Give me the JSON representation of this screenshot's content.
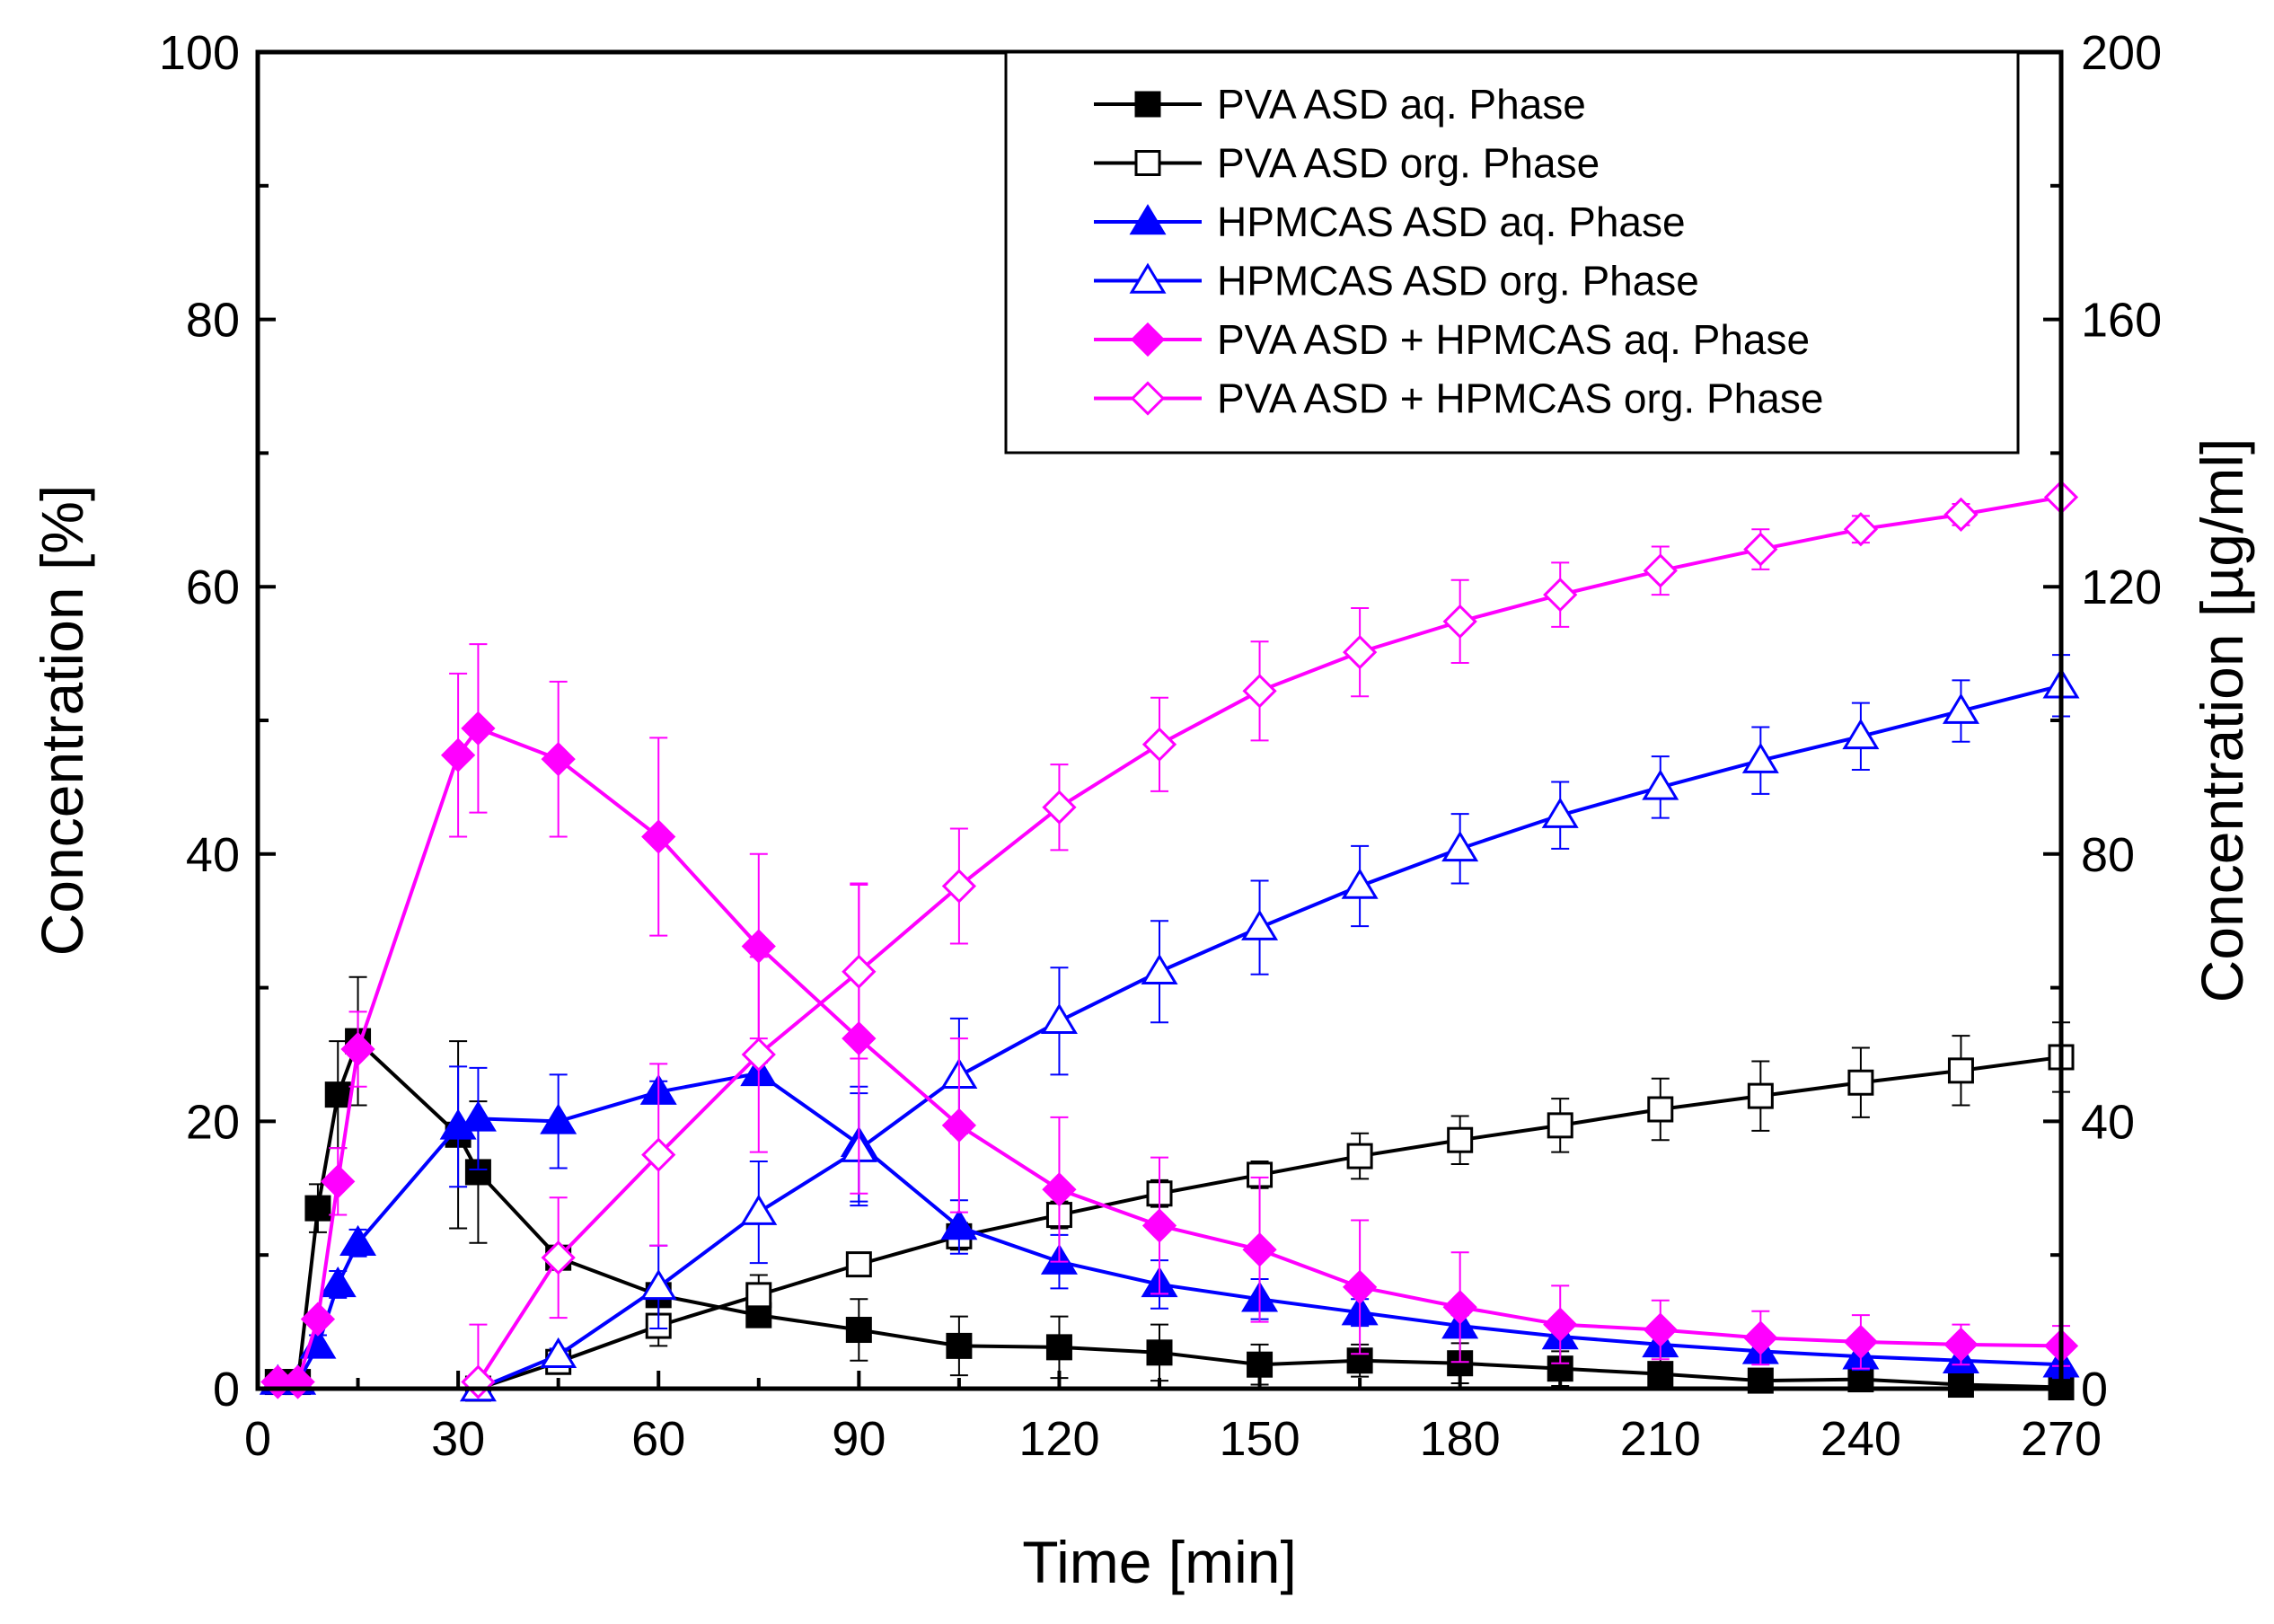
{
  "chart_data": {
    "type": "line",
    "title": "",
    "xlabel": "Time [min]",
    "ylabel": "Concentration [%]",
    "y2label": "Concentration [µg/ml]",
    "xlim": [
      0,
      270
    ],
    "ylim": [
      0,
      100
    ],
    "y2lim": [
      0,
      200
    ],
    "xticks": [
      0,
      30,
      60,
      90,
      120,
      150,
      180,
      210,
      240,
      270
    ],
    "yticks": [
      0,
      20,
      40,
      60,
      80,
      100
    ],
    "y2ticks": [
      0,
      40,
      80,
      120,
      160,
      200
    ],
    "legend_position": "top-right",
    "grid": false,
    "series": [
      {
        "name": "PVA ASD aq. Phase",
        "color": "#000000",
        "marker": "square",
        "filled": true,
        "x": [
          3,
          6,
          9,
          12,
          15,
          30,
          33,
          45,
          60,
          75,
          90,
          105,
          120,
          135,
          150,
          165,
          180,
          195,
          210,
          225,
          240,
          255,
          270
        ],
        "y": [
          0.5,
          0.5,
          13.5,
          22,
          26,
          19,
          16.2,
          9.8,
          7,
          5.5,
          4.4,
          3.2,
          3.1,
          2.7,
          1.8,
          2.1,
          1.9,
          1.5,
          1.1,
          0.6,
          0.7,
          0.3,
          0.1
        ],
        "err": [
          0.3,
          0.3,
          1.8,
          4,
          4.8,
          7,
          5.3,
          0.8,
          0.8,
          0.8,
          2.3,
          2.2,
          2.3,
          2.1,
          1.5,
          1.2,
          1.5,
          1.3,
          1.3,
          0.7,
          1.1,
          0.6,
          0.4
        ]
      },
      {
        "name": "PVA ASD org. Phase",
        "color": "#000000",
        "marker": "square",
        "filled": false,
        "x": [
          33,
          45,
          60,
          75,
          90,
          105,
          120,
          135,
          150,
          165,
          180,
          195,
          210,
          225,
          240,
          255,
          270
        ],
        "y": [
          0,
          2,
          4.7,
          7,
          9.3,
          11.4,
          13,
          14.6,
          16,
          17.4,
          18.6,
          19.7,
          20.9,
          21.9,
          22.9,
          23.8,
          24.8
        ],
        "err": [
          0,
          0.5,
          1.5,
          1.5,
          0.5,
          1,
          1,
          1,
          1,
          1.7,
          1.8,
          2,
          2.3,
          2.6,
          2.6,
          2.6,
          2.6
        ]
      },
      {
        "name": "HPMCAS ASD aq. Phase",
        "color": "#0000ff",
        "marker": "triangle",
        "filled": true,
        "x": [
          3,
          6,
          9,
          12,
          15,
          30,
          33,
          45,
          60,
          75,
          90,
          105,
          120,
          135,
          150,
          165,
          180,
          195,
          210,
          225,
          240,
          255,
          270
        ],
        "y": [
          0.5,
          0.5,
          3.2,
          7.8,
          10.9,
          19.6,
          20.2,
          20,
          22.2,
          23.6,
          18.3,
          12.1,
          9.5,
          7.8,
          6.7,
          5.7,
          4.7,
          3.9,
          3.3,
          2.8,
          2.4,
          2.1,
          1.8
        ],
        "err": [
          0.3,
          0.3,
          0.8,
          1,
          1,
          4.5,
          3.8,
          3.5,
          0.8,
          0.8,
          4.3,
          2,
          2,
          1.8,
          1.5,
          1,
          0.8,
          0.8,
          0.8,
          0.8,
          1,
          0.8,
          1
        ]
      },
      {
        "name": "HPMCAS ASD org. Phase",
        "color": "#0000ff",
        "marker": "triangle",
        "filled": false,
        "x": [
          33,
          45,
          60,
          75,
          90,
          105,
          120,
          135,
          150,
          165,
          180,
          195,
          210,
          225,
          240,
          255,
          270
        ],
        "y": [
          0,
          2.5,
          7.6,
          13.2,
          17.9,
          23.4,
          27.5,
          31.2,
          34.5,
          37.6,
          40.4,
          42.9,
          45,
          47,
          48.8,
          50.7,
          52.6
        ],
        "err": [
          0,
          0.5,
          3.1,
          3.8,
          4.2,
          4.3,
          4,
          3.8,
          3.5,
          3,
          2.6,
          2.5,
          2.3,
          2.5,
          2.5,
          2.3,
          2.3
        ]
      },
      {
        "name": "PVA ASD + HPMCAS aq. Phase",
        "color": "#ff00ff",
        "marker": "diamond",
        "filled": true,
        "x": [
          3,
          6,
          9,
          12,
          15,
          30,
          33,
          45,
          60,
          75,
          90,
          105,
          120,
          135,
          150,
          165,
          180,
          195,
          210,
          225,
          240,
          255,
          270
        ],
        "y": [
          0.5,
          0.5,
          5.2,
          15.5,
          25.4,
          47.4,
          49.4,
          47.1,
          41.3,
          33.1,
          26.2,
          19.7,
          14.9,
          12.2,
          10.4,
          7.6,
          6.1,
          4.8,
          4.4,
          3.8,
          3.5,
          3.3,
          3.2
        ],
        "err": [
          0.3,
          0.3,
          0.5,
          2.5,
          2.8,
          6.1,
          6.3,
          5.8,
          7.4,
          6.9,
          11.6,
          6.5,
          5.4,
          5.1,
          5.4,
          5,
          4.1,
          2.9,
          2.2,
          2,
          2,
          1.5,
          1.5
        ]
      },
      {
        "name": "PVA ASD + HPMCAS org. Phase",
        "color": "#ff00ff",
        "marker": "diamond",
        "filled": false,
        "x": [
          33,
          45,
          60,
          75,
          90,
          105,
          120,
          135,
          150,
          165,
          180,
          195,
          210,
          225,
          240,
          255,
          270
        ],
        "y": [
          0.5,
          9.8,
          17.5,
          25,
          31.2,
          37.6,
          43.5,
          48.2,
          52.2,
          55.1,
          57.4,
          59.4,
          61.2,
          62.8,
          64.3,
          65.4,
          66.7
        ],
        "err": [
          4.3,
          4.5,
          6.8,
          7.3,
          6.5,
          4.3,
          3.2,
          3.5,
          3.7,
          3.3,
          3.1,
          2.4,
          1.8,
          1.5,
          1,
          0.8,
          0.5
        ]
      }
    ]
  }
}
